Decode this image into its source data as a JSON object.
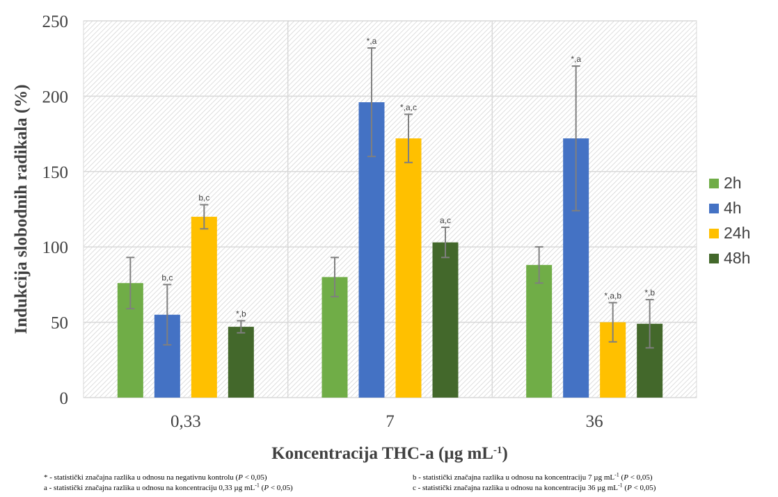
{
  "chart_data": {
    "type": "bar",
    "title": "",
    "xlabel": "Koncentracija THC-a (µg mL",
    "xlabel_sup": "-1",
    "xlabel_end": ")",
    "ylabel": "Indukcija slobodnih radikala (%)",
    "ylim": [
      0,
      250
    ],
    "yticks": [
      0,
      50,
      100,
      150,
      200,
      250
    ],
    "grid": true,
    "legend_position": "right",
    "categories": [
      "0,33",
      "7",
      "36"
    ],
    "series": [
      {
        "name": "2h",
        "color": "#70ad47",
        "values": [
          76,
          80,
          88
        ],
        "errors": [
          17,
          13,
          12
        ],
        "labels": [
          "",
          "",
          ""
        ]
      },
      {
        "name": "4h",
        "color": "#4472c4",
        "values": [
          55,
          196,
          172
        ],
        "errors": [
          20,
          36,
          48
        ],
        "labels": [
          "b,c",
          "*,a",
          "*,a"
        ]
      },
      {
        "name": "24h",
        "color": "#ffc000",
        "values": [
          120,
          172,
          50
        ],
        "errors": [
          8,
          16,
          13
        ],
        "labels": [
          "b,c",
          "*,a,c",
          "*,a,b"
        ]
      },
      {
        "name": "48h",
        "color": "#43682b",
        "values": [
          47,
          103,
          49
        ],
        "errors": [
          4,
          10,
          16
        ],
        "labels": [
          "*,b",
          "a,c",
          "*,b"
        ]
      }
    ]
  },
  "footnotes": {
    "n1_pre": "* - statistički značajna razlika u odnosu na negativnu kontrolu (",
    "n2_pre": "a - statistički značajna razlika u odnosu na koncentraciju 0,33 µg mL",
    "n3_pre": "b - statistički značajna razlika u odnosu na koncentraciju 7 µg mL",
    "n4_pre": "c - statistički značajna razlika u odnosu na koncentraciju 36 µg mL",
    "sup": "-1",
    "p_open": " (",
    "p": "P",
    "p_close": " < 0,05)"
  }
}
